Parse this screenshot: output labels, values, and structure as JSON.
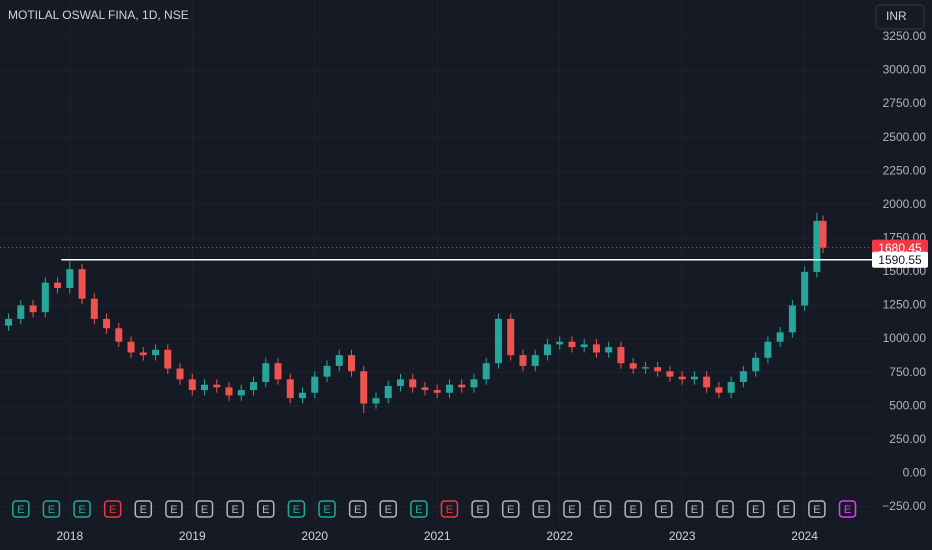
{
  "chart_data": {
    "type": "candlestick",
    "title": "MOTILAL OSWAL FINA, 1D, NSE",
    "currency": "INR",
    "up_color": "#26a69a",
    "down_color": "#ef5350",
    "grid": true,
    "xlim": [
      2017.43,
      2024.55
    ],
    "ylim": [
      -385,
      3525
    ],
    "xticks": [
      2018,
      2019,
      2020,
      2021,
      2022,
      2023,
      2024
    ],
    "yticks": [
      {
        "value": -250,
        "label": "−250.00"
      },
      {
        "value": 0,
        "label": "0.00"
      },
      {
        "value": 250,
        "label": "250.00"
      },
      {
        "value": 500,
        "label": "500.00"
      },
      {
        "value": 750,
        "label": "750.00"
      },
      {
        "value": 1000,
        "label": "1000.00"
      },
      {
        "value": 1250,
        "label": "1250.00"
      },
      {
        "value": 1500,
        "label": "1500.00"
      },
      {
        "value": 1750,
        "label": "1750.00"
      },
      {
        "value": 2000,
        "label": "2000.00"
      },
      {
        "value": 2250,
        "label": "2250.00"
      },
      {
        "value": 2500,
        "label": "2500.00"
      },
      {
        "value": 2750,
        "label": "2750.00"
      },
      {
        "value": 3000,
        "label": "3000.00"
      },
      {
        "value": 3250,
        "label": "3250.00"
      }
    ],
    "x": [
      2017.5,
      2017.6,
      2017.7,
      2017.8,
      2017.9,
      2018.0,
      2018.1,
      2018.2,
      2018.3,
      2018.4,
      2018.5,
      2018.6,
      2018.7,
      2018.8,
      2018.9,
      2019.0,
      2019.1,
      2019.2,
      2019.3,
      2019.4,
      2019.5,
      2019.6,
      2019.7,
      2019.8,
      2019.9,
      2020.0,
      2020.1,
      2020.2,
      2020.3,
      2020.4,
      2020.5,
      2020.6,
      2020.7,
      2020.8,
      2020.9,
      2021.0,
      2021.1,
      2021.2,
      2021.3,
      2021.4,
      2021.5,
      2021.6,
      2021.7,
      2021.8,
      2021.9,
      2022.0,
      2022.1,
      2022.2,
      2022.3,
      2022.4,
      2022.5,
      2022.6,
      2022.7,
      2022.8,
      2022.9,
      2023.0,
      2023.1,
      2023.2,
      2023.3,
      2023.4,
      2023.5,
      2023.6,
      2023.7,
      2023.8,
      2023.9,
      2024.0,
      2024.1,
      2024.15
    ],
    "open": [
      1100,
      1150,
      1250,
      1200,
      1420,
      1380,
      1520,
      1300,
      1150,
      1080,
      980,
      900,
      880,
      920,
      780,
      700,
      620,
      660,
      640,
      580,
      620,
      680,
      820,
      700,
      560,
      600,
      720,
      800,
      880,
      760,
      520,
      560,
      650,
      700,
      640,
      620,
      600,
      660,
      640,
      700,
      820,
      1150,
      880,
      800,
      880,
      960,
      980,
      940,
      960,
      900,
      940,
      820,
      780,
      790,
      760,
      720,
      700,
      720,
      640,
      600,
      680,
      760,
      860,
      980,
      1050,
      1250,
      1500,
      1880
    ],
    "high": [
      1190,
      1290,
      1290,
      1460,
      1460,
      1580,
      1560,
      1340,
      1190,
      1120,
      1020,
      940,
      960,
      960,
      820,
      740,
      700,
      700,
      680,
      660,
      720,
      860,
      860,
      740,
      640,
      760,
      840,
      920,
      920,
      800,
      600,
      690,
      740,
      740,
      680,
      660,
      700,
      700,
      740,
      860,
      1190,
      1190,
      920,
      920,
      1000,
      1020,
      1020,
      1000,
      1000,
      980,
      980,
      860,
      830,
      830,
      800,
      760,
      760,
      760,
      680,
      720,
      800,
      900,
      1020,
      1090,
      1290,
      1540,
      1940,
      1920
    ],
    "low": [
      1060,
      1110,
      1160,
      1160,
      1340,
      1340,
      1260,
      1110,
      1040,
      940,
      860,
      840,
      840,
      740,
      660,
      580,
      580,
      600,
      540,
      540,
      580,
      640,
      660,
      520,
      520,
      560,
      680,
      760,
      720,
      450,
      480,
      520,
      610,
      600,
      580,
      560,
      560,
      600,
      600,
      660,
      780,
      840,
      760,
      760,
      840,
      920,
      900,
      900,
      860,
      860,
      780,
      740,
      740,
      720,
      680,
      660,
      660,
      600,
      560,
      560,
      640,
      720,
      820,
      940,
      1010,
      1210,
      1460,
      1640
    ],
    "close": [
      1150,
      1250,
      1200,
      1420,
      1380,
      1520,
      1300,
      1150,
      1080,
      980,
      900,
      880,
      920,
      780,
      700,
      620,
      660,
      640,
      580,
      620,
      680,
      820,
      700,
      560,
      600,
      720,
      800,
      880,
      760,
      520,
      560,
      650,
      700,
      640,
      620,
      600,
      660,
      640,
      700,
      820,
      1150,
      880,
      800,
      880,
      960,
      980,
      940,
      960,
      900,
      940,
      820,
      780,
      790,
      760,
      720,
      700,
      720,
      640,
      600,
      680,
      760,
      860,
      980,
      1050,
      1250,
      1500,
      1880,
      1680.45
    ],
    "price_lines": [
      {
        "value": 1680.45,
        "label": "1680.45",
        "color": "#f23645",
        "start": 2017.43
      },
      {
        "value": 1590.55,
        "label": "1590.55",
        "color": "#ffffff",
        "start": 2017.93
      }
    ],
    "events": {
      "x": [
        2017.6,
        2017.85,
        2018.1,
        2018.35,
        2018.6,
        2018.85,
        2019.1,
        2019.35,
        2019.6,
        2019.85,
        2020.1,
        2020.35,
        2020.6,
        2020.85,
        2021.1,
        2021.35,
        2021.6,
        2021.85,
        2022.1,
        2022.35,
        2022.6,
        2022.85,
        2023.1,
        2023.35,
        2023.6,
        2023.85,
        2024.1,
        2024.35
      ],
      "labels": [
        "E",
        "E",
        "E",
        "E",
        "E",
        "E",
        "E",
        "E",
        "E",
        "E",
        "E",
        "E",
        "E",
        "E",
        "E",
        "E",
        "E",
        "E",
        "E",
        "E",
        "E",
        "E",
        "E",
        "E",
        "E",
        "E",
        "E",
        "E"
      ],
      "colors": [
        "#22ab94",
        "#22ab94",
        "#22ab94",
        "#f23645",
        "#b2b5be",
        "#b2b5be",
        "#b2b5be",
        "#b2b5be",
        "#b2b5be",
        "#22ab94",
        "#22ab94",
        "#b2b5be",
        "#b2b5be",
        "#22ab94",
        "#f23645",
        "#b2b5be",
        "#b2b5be",
        "#b2b5be",
        "#b2b5be",
        "#b2b5be",
        "#b2b5be",
        "#b2b5be",
        "#b2b5be",
        "#b2b5be",
        "#b2b5be",
        "#b2b5be",
        "#b2b5be",
        "#e040fb"
      ]
    }
  }
}
